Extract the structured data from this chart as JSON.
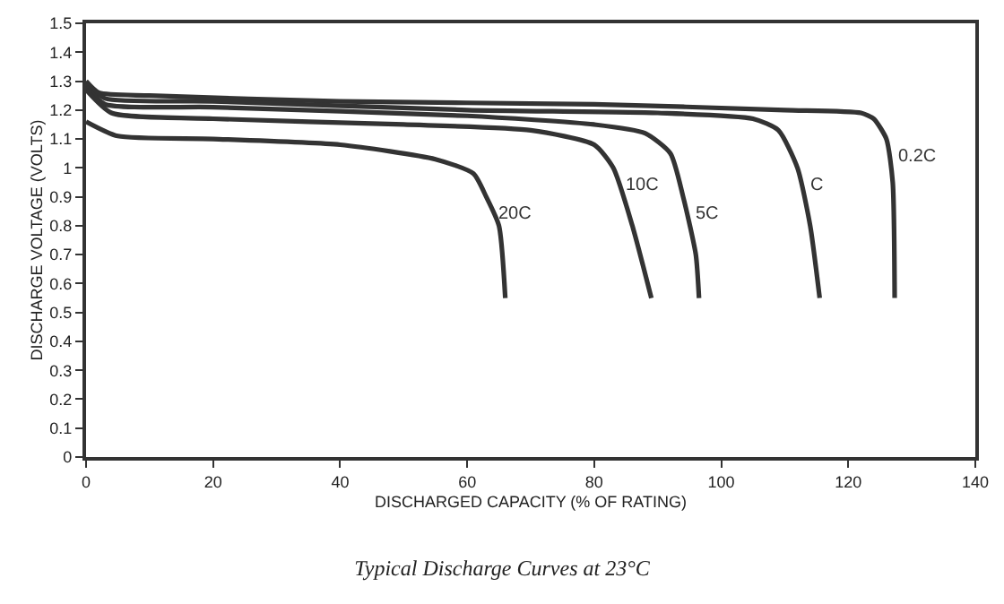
{
  "chart_data": {
    "type": "line",
    "title": "Typical Discharge Curves at 23°C",
    "xlabel": "DISCHARGED CAPACITY (% OF RATING)",
    "ylabel": "DISCHARGE VOLTAGE (VOLTS)",
    "xlim": [
      0,
      140
    ],
    "xticks": [
      0,
      20,
      40,
      60,
      80,
      100,
      120,
      140
    ],
    "ylim": [
      0,
      1.5
    ],
    "yticks": [
      0,
      0.1,
      0.2,
      0.3,
      0.4,
      0.5,
      0.6,
      0.7,
      0.8,
      0.9,
      1,
      1.1,
      1.2,
      1.3,
      1.4,
      1.5
    ],
    "grid": false,
    "legend": false,
    "marker": "none",
    "line_style": "solid",
    "series": [
      {
        "name": "0.2C",
        "color": "#333333",
        "x": [
          0,
          2,
          10,
          40,
          80,
          110,
          122,
          124,
          126,
          127,
          127.3
        ],
        "values": [
          1.3,
          1.26,
          1.25,
          1.23,
          1.22,
          1.2,
          1.19,
          1.17,
          1.1,
          0.95,
          0.55
        ]
      },
      {
        "name": "C",
        "color": "#333333",
        "x": [
          0,
          3,
          20,
          60,
          90,
          105,
          109,
          112,
          114,
          115.5
        ],
        "values": [
          1.29,
          1.24,
          1.23,
          1.2,
          1.19,
          1.17,
          1.13,
          1.0,
          0.8,
          0.55
        ]
      },
      {
        "name": "5C",
        "color": "#333333",
        "x": [
          0,
          3,
          20,
          60,
          80,
          88,
          92,
          94,
          96,
          96.5
        ],
        "values": [
          1.28,
          1.22,
          1.21,
          1.18,
          1.15,
          1.12,
          1.05,
          0.9,
          0.7,
          0.55
        ]
      },
      {
        "name": "10C",
        "color": "#333333",
        "x": [
          0,
          4,
          20,
          50,
          70,
          80,
          83,
          86,
          89
        ],
        "values": [
          1.27,
          1.19,
          1.17,
          1.15,
          1.13,
          1.08,
          1.0,
          0.8,
          0.55
        ]
      },
      {
        "name": "20C",
        "color": "#333333",
        "x": [
          0,
          5,
          20,
          40,
          55,
          61,
          63,
          65,
          66
        ],
        "values": [
          1.16,
          1.11,
          1.1,
          1.08,
          1.03,
          0.98,
          0.9,
          0.8,
          0.55
        ]
      }
    ]
  }
}
